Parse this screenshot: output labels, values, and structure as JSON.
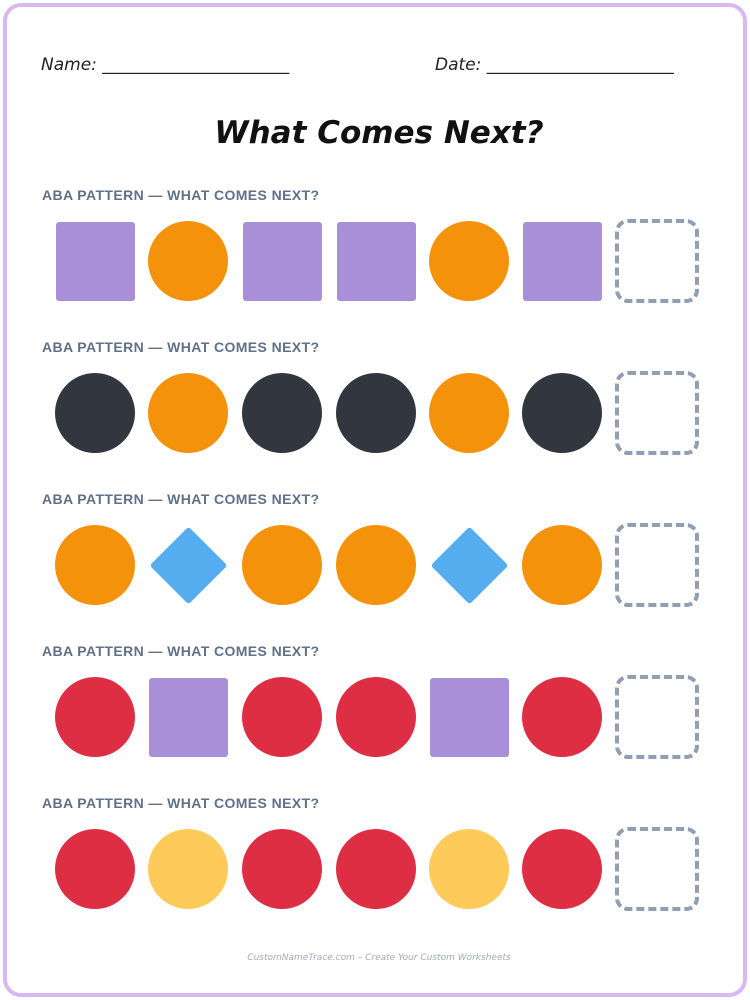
{
  "header": {
    "name_line": "Name: ______________________",
    "date_line": "Date: ______________________"
  },
  "title": "What Comes Next?",
  "colors": {
    "purple": "#a98fd8",
    "orange": "#f5920c",
    "dark": "#31363f",
    "blue": "#55adf0",
    "red": "#dd2e44",
    "yellow": "#fecb5a",
    "blank_border": "#929fb2",
    "sheet_border": "#d7b8f3"
  },
  "patterns": [
    {
      "label": "ABA PATTERN — WHAT COMES NEXT?",
      "shapes": [
        {
          "shape": "square",
          "color": "purple"
        },
        {
          "shape": "circle",
          "color": "orange"
        },
        {
          "shape": "square",
          "color": "purple"
        },
        {
          "shape": "square",
          "color": "purple"
        },
        {
          "shape": "circle",
          "color": "orange"
        },
        {
          "shape": "square",
          "color": "purple"
        },
        {
          "shape": "blank"
        }
      ]
    },
    {
      "label": "ABA PATTERN — WHAT COMES NEXT?",
      "shapes": [
        {
          "shape": "circle",
          "color": "dark"
        },
        {
          "shape": "circle",
          "color": "orange"
        },
        {
          "shape": "circle",
          "color": "dark"
        },
        {
          "shape": "circle",
          "color": "dark"
        },
        {
          "shape": "circle",
          "color": "orange"
        },
        {
          "shape": "circle",
          "color": "dark"
        },
        {
          "shape": "blank"
        }
      ]
    },
    {
      "label": "ABA PATTERN — WHAT COMES NEXT?",
      "shapes": [
        {
          "shape": "circle",
          "color": "orange"
        },
        {
          "shape": "diamond",
          "color": "blue"
        },
        {
          "shape": "circle",
          "color": "orange"
        },
        {
          "shape": "circle",
          "color": "orange"
        },
        {
          "shape": "diamond",
          "color": "blue"
        },
        {
          "shape": "circle",
          "color": "orange"
        },
        {
          "shape": "blank"
        }
      ]
    },
    {
      "label": "ABA PATTERN — WHAT COMES NEXT?",
      "shapes": [
        {
          "shape": "circle",
          "color": "red"
        },
        {
          "shape": "square",
          "color": "purple"
        },
        {
          "shape": "circle",
          "color": "red"
        },
        {
          "shape": "circle",
          "color": "red"
        },
        {
          "shape": "square",
          "color": "purple"
        },
        {
          "shape": "circle",
          "color": "red"
        },
        {
          "shape": "blank"
        }
      ]
    },
    {
      "label": "ABA PATTERN — WHAT COMES NEXT?",
      "shapes": [
        {
          "shape": "circle",
          "color": "red"
        },
        {
          "shape": "circle",
          "color": "yellow"
        },
        {
          "shape": "circle",
          "color": "red"
        },
        {
          "shape": "circle",
          "color": "red"
        },
        {
          "shape": "circle",
          "color": "yellow"
        },
        {
          "shape": "circle",
          "color": "red"
        },
        {
          "shape": "blank"
        }
      ]
    }
  ],
  "footer": "CustomNameTrace.com – Create Your Custom Worksheets"
}
